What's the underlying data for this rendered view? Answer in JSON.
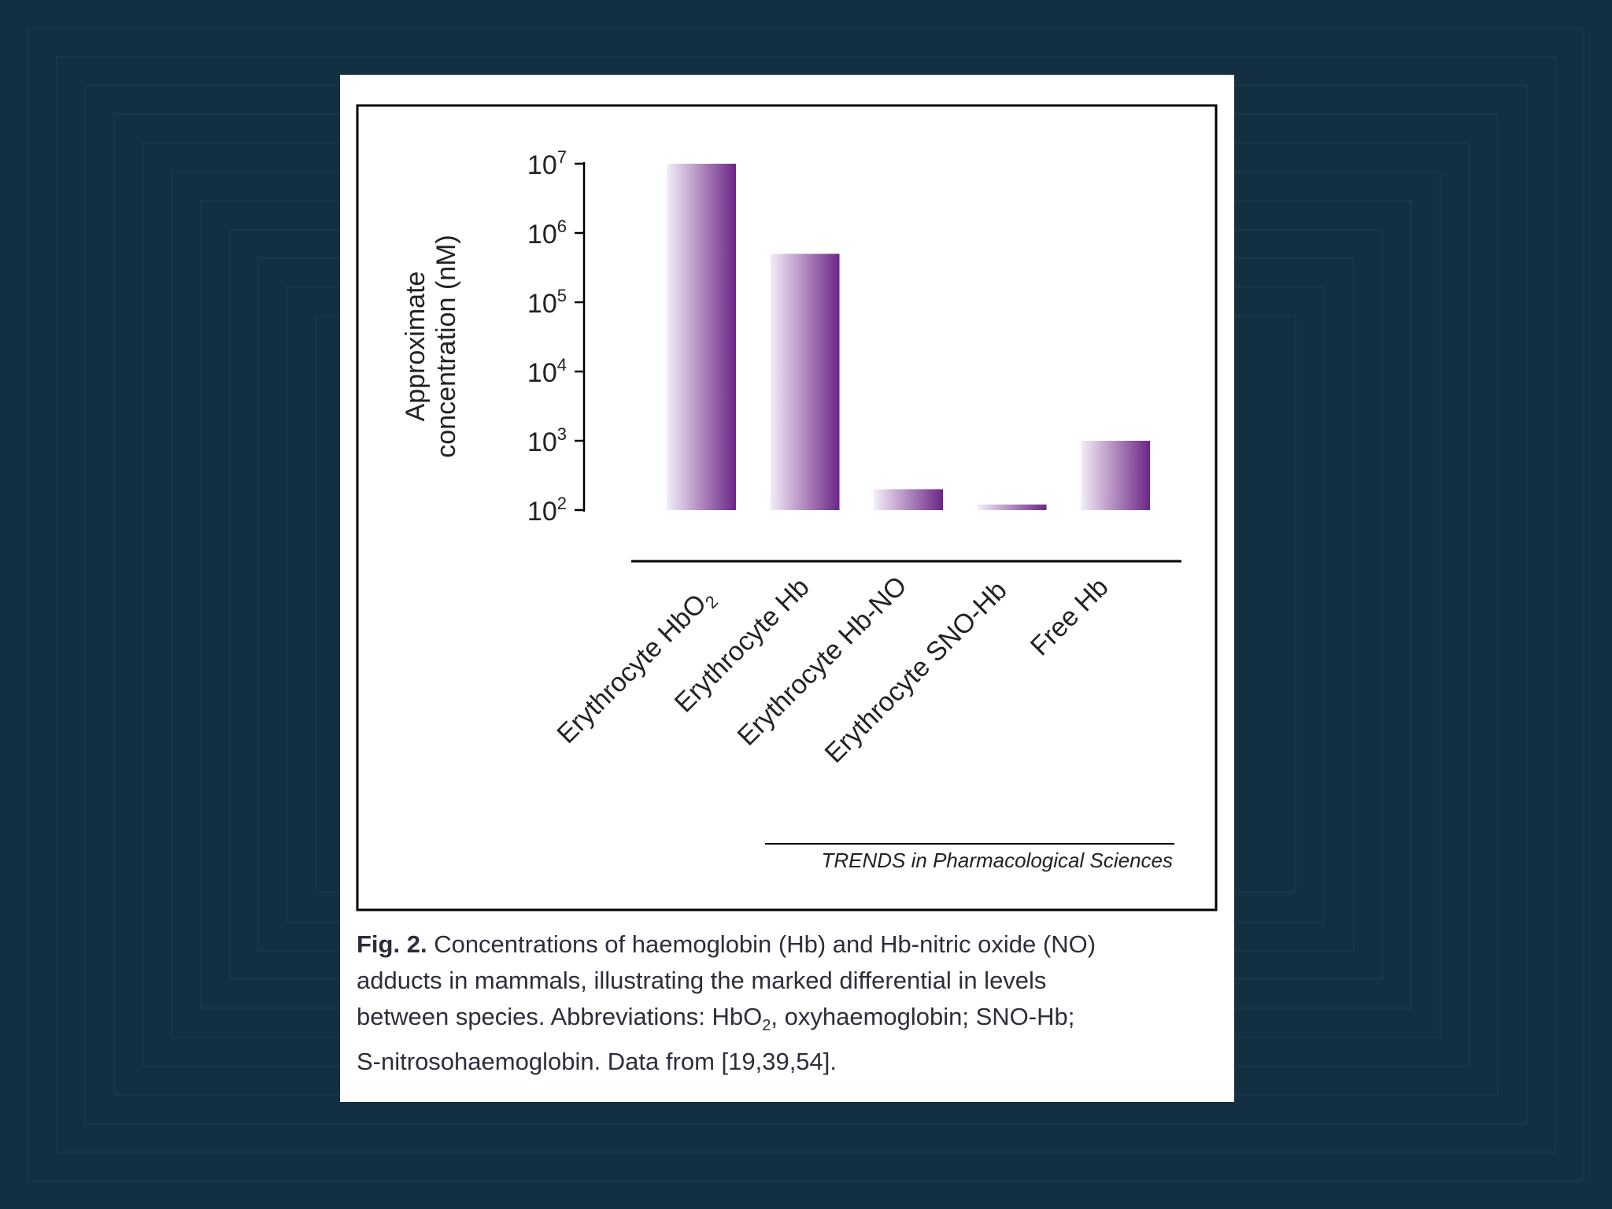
{
  "chart_data": {
    "type": "bar",
    "categories": [
      "Erythrocyte HbO2",
      "Erythrocyte Hb",
      "Erythrocyte Hb-NO",
      "Erythrocyte SNO-Hb",
      "Free Hb"
    ],
    "category_labels": [
      {
        "main": "Erythrocyte HbO",
        "sub": "2"
      },
      {
        "main": "Erythrocyte Hb",
        "sub": ""
      },
      {
        "main": "Erythrocyte Hb-NO",
        "sub": ""
      },
      {
        "main": "Erythrocyte SNO-Hb",
        "sub": ""
      },
      {
        "main": "Free Hb",
        "sub": ""
      }
    ],
    "values": [
      10000000,
      500000,
      200,
      120,
      1000
    ],
    "yscale": "log",
    "ylim": [
      100,
      10000000
    ],
    "yticks": [
      {
        "base": "10",
        "exp": "7"
      },
      {
        "base": "10",
        "exp": "6"
      },
      {
        "base": "10",
        "exp": "5"
      },
      {
        "base": "10",
        "exp": "4"
      },
      {
        "base": "10",
        "exp": "3"
      },
      {
        "base": "10",
        "exp": "2"
      }
    ],
    "ylabel_line1": "Approximate",
    "ylabel_line2": "concentration (nM)",
    "bar_color_light": "#f4eef7",
    "bar_color_dark": "#6b2585",
    "grid": false
  },
  "credit": "TRENDS in Pharmacological Sciences",
  "caption": {
    "label": "Fig. 2.",
    "line1": " Concentrations of haemoglobin (Hb) and Hb-nitric oxide (NO)",
    "line2": "adducts in mammals, illustrating the marked differential in levels",
    "line3_a": "between species. Abbreviations: HbO",
    "line3_sub": "2",
    "line3_b": ", oxyhaemoglobin; SNO-Hb;",
    "line4": "S-nitrosohaemoglobin. Data from [19,39,54]."
  },
  "colors": {
    "background": "#133043",
    "card": "#ffffff",
    "text": "#2d2d3c"
  }
}
